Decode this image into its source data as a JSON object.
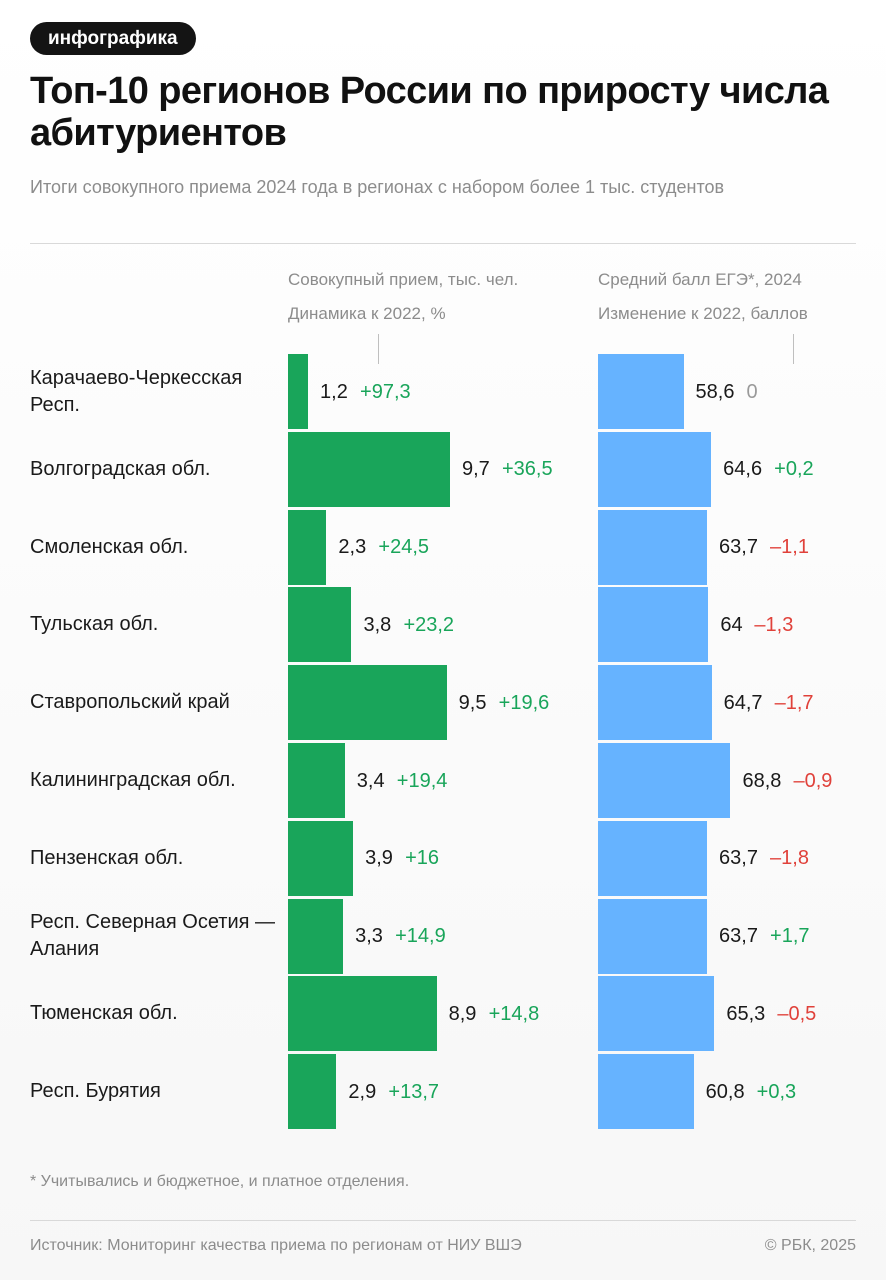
{
  "tag": "инфографика",
  "title": "Топ-10 регионов России по приросту числа абитуриентов",
  "subtitle": "Итоги совокупного приема 2024 года в регионах с набором более 1 тыс. студентов",
  "left_header": {
    "line1": "Совокупный прием, тыс. чел.",
    "line2": "Динамика к 2022, %"
  },
  "right_header": {
    "line1": "Средний балл ЕГЭ*, 2024",
    "line2": "Изменение к 2022, баллов"
  },
  "footnote": "* Учитывались и бюджетное, и платное отделения.",
  "source": "Источник: Мониторинг качества приема по регионам от НИУ ВШЭ",
  "copyright": "© РБК, 2025",
  "colors": {
    "green_bar": "#19a55a",
    "blue_bar": "#66b3ff",
    "positive": "#19a55a",
    "negative": "#e0413a",
    "neutral": "#9a9a9a"
  },
  "chart_data": {
    "type": "bar",
    "orientation": "horizontal",
    "categories": [
      "Карачаево-Черкесская Респ.",
      "Волгоградская обл.",
      "Смоленская обл.",
      "Тульская обл.",
      "Ставропольский край",
      "Калининградская обл.",
      "Пензенская обл.",
      "Респ. Северная Осетия — Алания",
      "Тюменская обл.",
      "Респ. Бурятия"
    ],
    "series": [
      {
        "name": "Совокупный прием, тыс. чел.",
        "values": [
          1.2,
          9.7,
          2.3,
          3.8,
          9.5,
          3.4,
          3.9,
          3.3,
          8.9,
          2.9
        ],
        "labels": [
          "1,2",
          "9,7",
          "2,3",
          "3,8",
          "9,5",
          "3,4",
          "3,9",
          "3,3",
          "8,9",
          "2,9"
        ]
      },
      {
        "name": "Динамика к 2022, %",
        "values": [
          97.3,
          36.5,
          24.5,
          23.2,
          19.6,
          19.4,
          16,
          14.9,
          14.8,
          13.7
        ],
        "labels": [
          "+97,3",
          "+36,5",
          "+24,5",
          "+23,2",
          "+19,6",
          "+19,4",
          "+16",
          "+14,9",
          "+14,8",
          "+13,7"
        ]
      },
      {
        "name": "Средний балл ЕГЭ*, 2024",
        "values": [
          58.6,
          64.6,
          63.7,
          64,
          64.7,
          68.8,
          63.7,
          63.7,
          65.3,
          60.8
        ],
        "labels": [
          "58,6",
          "64,6",
          "63,7",
          "64",
          "64,7",
          "68,8",
          "63,7",
          "63,7",
          "65,3",
          "60,8"
        ]
      },
      {
        "name": "Изменение к 2022, баллов",
        "values": [
          0,
          0.2,
          -1.1,
          -1.3,
          -1.7,
          -0.9,
          -1.8,
          1.7,
          -0.5,
          0.3
        ],
        "labels": [
          "0",
          "+0,2",
          "–1,1",
          "–1,3",
          "–1,7",
          "–0,9",
          "–1,8",
          "+1,7",
          "–0,5",
          "+0,3"
        ]
      }
    ]
  }
}
